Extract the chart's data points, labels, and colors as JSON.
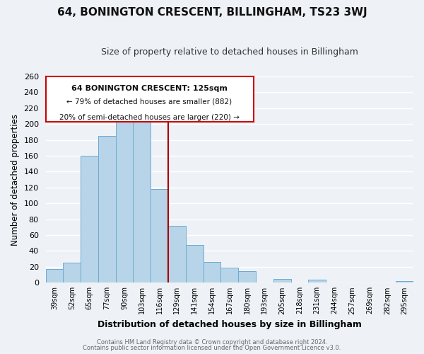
{
  "title": "64, BONINGTON CRESCENT, BILLINGHAM, TS23 3WJ",
  "subtitle": "Size of property relative to detached houses in Billingham",
  "xlabel": "Distribution of detached houses by size in Billingham",
  "ylabel": "Number of detached properties",
  "footer_line1": "Contains HM Land Registry data © Crown copyright and database right 2024.",
  "footer_line2": "Contains public sector information licensed under the Open Government Licence v3.0.",
  "categories": [
    "39sqm",
    "52sqm",
    "65sqm",
    "77sqm",
    "90sqm",
    "103sqm",
    "116sqm",
    "129sqm",
    "141sqm",
    "154sqm",
    "167sqm",
    "180sqm",
    "193sqm",
    "205sqm",
    "218sqm",
    "231sqm",
    "244sqm",
    "257sqm",
    "269sqm",
    "282sqm",
    "295sqm"
  ],
  "values": [
    17,
    25,
    160,
    185,
    210,
    215,
    118,
    72,
    48,
    26,
    19,
    15,
    0,
    5,
    0,
    4,
    0,
    0,
    0,
    0,
    2
  ],
  "bar_color": "#b8d4e8",
  "bar_edge_color": "#6aaad4",
  "vline_x_index": 6.5,
  "vline_color": "#aa0000",
  "annotation_title": "64 BONINGTON CRESCENT: 125sqm",
  "annotation_line2": "← 79% of detached houses are smaller (882)",
  "annotation_line3": "20% of semi-detached houses are larger (220) →",
  "annotation_box_color": "#ffffff",
  "annotation_border_color": "#cc0000",
  "ylim": [
    0,
    260
  ],
  "yticks": [
    0,
    20,
    40,
    60,
    80,
    100,
    120,
    140,
    160,
    180,
    200,
    220,
    240,
    260
  ],
  "bg_color": "#eef2f7",
  "grid_color": "#ffffff"
}
